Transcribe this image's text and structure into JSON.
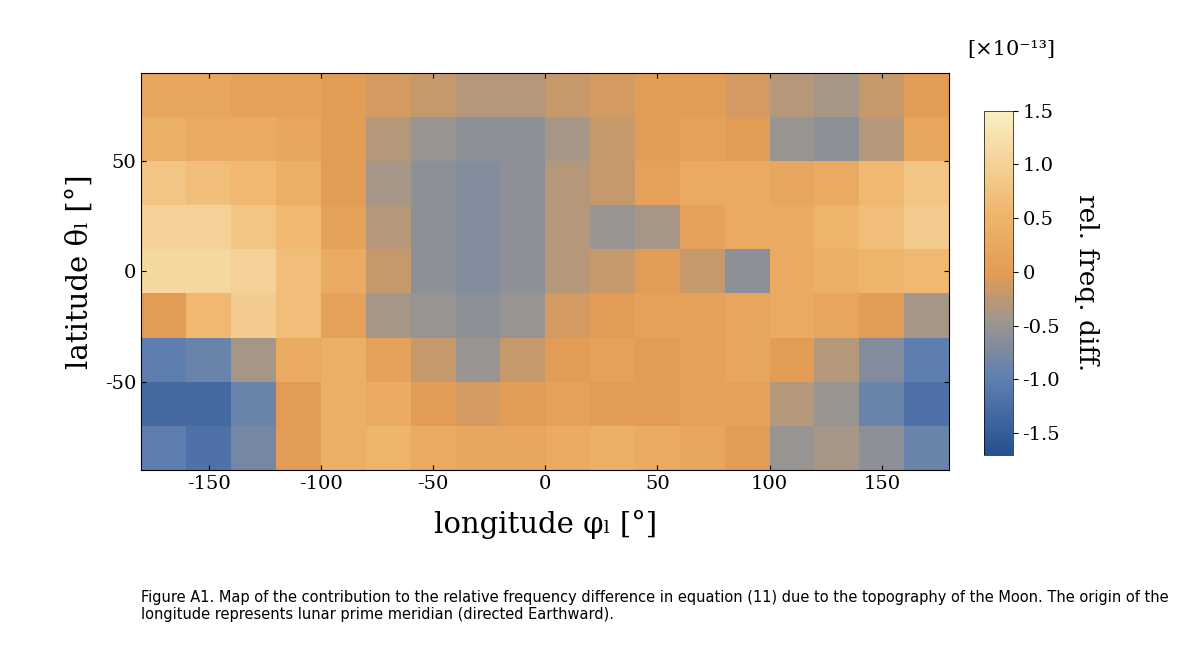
{
  "chart_data": {
    "type": "heatmap",
    "xlabel": "longitude φₗ [°]",
    "ylabel": "latitude θₗ [°]",
    "caption": "Figure A1. Map of the contribution to the relative frequency difference in equation (11) due to the topography of the Moon. The origin of the longitude represents lunar prime meridian (directed Earthward).",
    "colorbar_label": "rel. freq. diff.",
    "colorbar_multiplier": "[×10⁻¹³]",
    "xlim": [
      -180,
      180
    ],
    "ylim": [
      -90,
      90
    ],
    "xticks": [
      -150,
      -100,
      -50,
      0,
      50,
      100,
      150
    ],
    "yticks": [
      -50,
      0,
      50
    ],
    "x": [
      -170,
      -150,
      -130,
      -110,
      -90,
      -70,
      -50,
      -30,
      -10,
      10,
      30,
      50,
      70,
      90,
      110,
      130,
      150,
      170
    ],
    "y": [
      -80,
      -60,
      -40,
      -20,
      0,
      20,
      40,
      60,
      80
    ],
    "cells": [
      [
        -1.0,
        -1.2,
        -0.8,
        0.0,
        0.4,
        0.5,
        0.3,
        0.2,
        0.2,
        0.3,
        0.4,
        0.3,
        0.2,
        0.0,
        -0.5,
        -0.4,
        -0.6,
        -0.9
      ],
      [
        -1.3,
        -1.3,
        -0.9,
        0.0,
        0.4,
        0.3,
        0.0,
        -0.1,
        0.0,
        0.1,
        0.0,
        0.0,
        0.1,
        0.1,
        -0.3,
        -0.5,
        -0.9,
        -1.2
      ],
      [
        -1.0,
        -0.9,
        -0.4,
        0.3,
        0.4,
        0.1,
        -0.2,
        -0.5,
        -0.2,
        0.0,
        0.1,
        0.0,
        0.1,
        0.2,
        0.0,
        -0.3,
        -0.7,
        -1.0
      ],
      [
        0.0,
        0.6,
        0.9,
        0.7,
        0.1,
        -0.4,
        -0.5,
        -0.6,
        -0.5,
        -0.1,
        0.0,
        0.1,
        0.1,
        0.2,
        0.3,
        0.2,
        0.0,
        -0.4
      ],
      [
        1.1,
        1.1,
        1.0,
        0.7,
        0.3,
        -0.2,
        -0.6,
        -0.7,
        -0.6,
        -0.3,
        -0.2,
        0.0,
        -0.2,
        -0.6,
        0.3,
        0.4,
        0.5,
        0.6
      ],
      [
        1.0,
        1.0,
        0.8,
        0.6,
        0.1,
        -0.3,
        -0.6,
        -0.7,
        -0.6,
        -0.3,
        -0.5,
        -0.4,
        0.1,
        0.3,
        0.3,
        0.5,
        0.7,
        0.9
      ],
      [
        0.8,
        0.7,
        0.6,
        0.4,
        0.0,
        -0.4,
        -0.6,
        -0.7,
        -0.6,
        -0.3,
        -0.2,
        0.1,
        0.3,
        0.3,
        0.2,
        0.3,
        0.6,
        0.8
      ],
      [
        0.4,
        0.3,
        0.3,
        0.2,
        0.0,
        -0.3,
        -0.5,
        -0.6,
        -0.6,
        -0.4,
        -0.2,
        0.0,
        0.1,
        0.0,
        -0.5,
        -0.6,
        -0.3,
        0.2
      ],
      [
        0.2,
        0.2,
        0.1,
        0.1,
        0.0,
        -0.1,
        -0.2,
        -0.3,
        -0.3,
        -0.2,
        -0.1,
        0.0,
        0.0,
        -0.1,
        -0.3,
        -0.4,
        -0.2,
        0.0
      ]
    ],
    "colorbar_range": [
      -1.7,
      1.5
    ],
    "colorbar_ticks": [
      {
        "value": 1.5,
        "label": "1.5"
      },
      {
        "value": 1.0,
        "label": "1.0"
      },
      {
        "value": 0.5,
        "label": "0.5"
      },
      {
        "value": 0,
        "label": "0"
      },
      {
        "value": -0.5,
        "label": "-0.5"
      },
      {
        "value": -1.0,
        "label": "-1.0"
      },
      {
        "value": -1.5,
        "label": "-1.5"
      }
    ]
  }
}
